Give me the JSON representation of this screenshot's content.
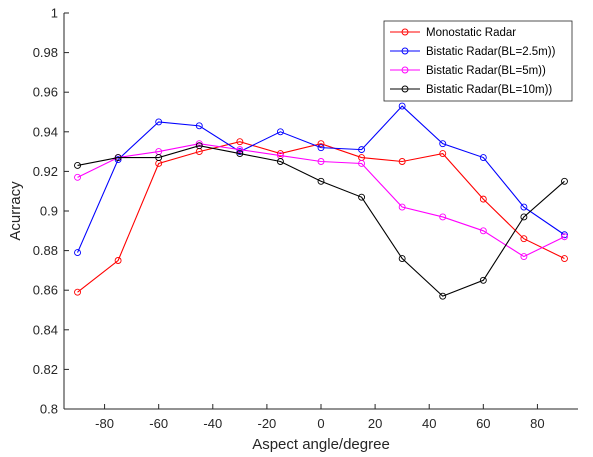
{
  "chart_data": {
    "type": "line",
    "title": "",
    "xlabel": "Aspect angle/degree",
    "ylabel": "Acurracy",
    "xlim": [
      -95,
      95
    ],
    "ylim": [
      0.8,
      1.0
    ],
    "grid": false,
    "legend_position": "top-right",
    "x": [
      -90,
      -75,
      -60,
      -45,
      -30,
      -15,
      0,
      15,
      30,
      45,
      60,
      75,
      90
    ],
    "xticks": [
      -80,
      -60,
      -40,
      -20,
      0,
      20,
      40,
      60,
      80
    ],
    "xtick_labels": [
      "-80",
      "-60",
      "-40",
      "-20",
      "0",
      "20",
      "40",
      "60",
      "80"
    ],
    "yticks": [
      0.8,
      0.82,
      0.84,
      0.86,
      0.88,
      0.9,
      0.92,
      0.94,
      0.96,
      0.98,
      1.0
    ],
    "ytick_labels": [
      "0.8",
      "0.82",
      "0.84",
      "0.86",
      "0.88",
      "0.9",
      "0.92",
      "0.94",
      "0.96",
      "0.98",
      "1"
    ],
    "marker": "circle",
    "series": [
      {
        "name": "Monostatic Radar",
        "color": "#ff0000",
        "values": [
          0.859,
          0.875,
          0.924,
          0.93,
          0.935,
          0.929,
          0.934,
          0.927,
          0.925,
          0.929,
          0.906,
          0.886,
          0.876
        ]
      },
      {
        "name": "Bistatic Radar(BL=2.5m))",
        "color": "#0000ff",
        "values": [
          0.879,
          0.926,
          0.945,
          0.943,
          0.93,
          0.94,
          0.932,
          0.931,
          0.953,
          0.934,
          0.927,
          0.902,
          0.888
        ]
      },
      {
        "name": "Bistatic Radar(BL=5m))",
        "color": "#ff00ff",
        "values": [
          0.917,
          0.927,
          0.93,
          0.934,
          0.931,
          0.928,
          0.925,
          0.924,
          0.902,
          0.897,
          0.89,
          0.877,
          0.887
        ]
      },
      {
        "name": "Bistatic Radar(BL=10m))",
        "color": "#000000",
        "values": [
          0.923,
          0.927,
          0.927,
          0.933,
          0.929,
          0.925,
          0.915,
          0.907,
          0.876,
          0.857,
          0.865,
          0.897,
          0.915
        ]
      }
    ]
  }
}
